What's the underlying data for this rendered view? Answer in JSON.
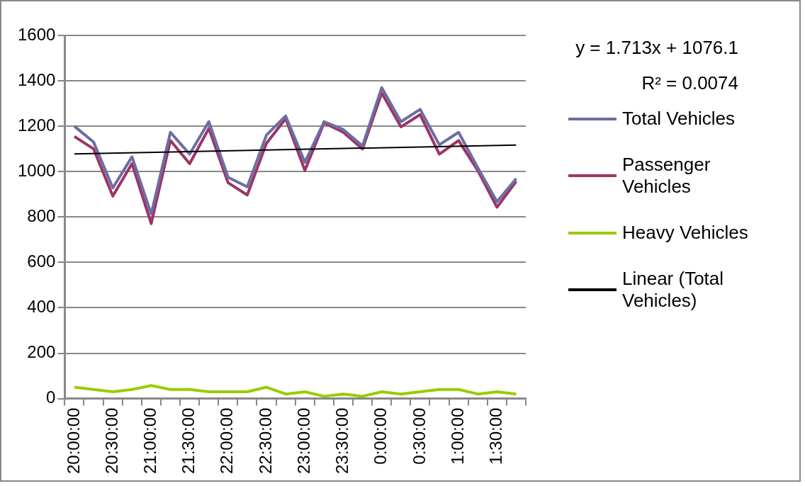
{
  "chart_data": {
    "type": "line",
    "categories": [
      "20:00:00",
      null,
      "20:30:00",
      null,
      "21:00:00",
      null,
      "21:30:00",
      null,
      "22:00:00",
      null,
      "22:30:00",
      null,
      "23:00:00",
      null,
      "23:30:00",
      null,
      "0:00:00",
      null,
      "0:30:00",
      null,
      "1:00:00",
      null,
      "1:30:00",
      null
    ],
    "series": [
      {
        "name": "Total Vehicles",
        "color": "#6b6ea3",
        "values": [
          1200,
          1130,
          928,
          1065,
          813,
          1173,
          1077,
          1220,
          975,
          933,
          1161,
          1245,
          1041,
          1220,
          1185,
          1113,
          1370,
          1220,
          1274,
          1118,
          1173,
          1017,
          867,
          969
        ]
      },
      {
        "name": "Passenger Vehicles",
        "color": "#9c3565",
        "values": [
          1155,
          1100,
          892,
          1035,
          771,
          1137,
          1035,
          1190,
          951,
          897,
          1125,
          1233,
          1005,
          1215,
          1173,
          1100,
          1346,
          1197,
          1251,
          1077,
          1137,
          1005,
          843,
          957
        ]
      },
      {
        "name": "Heavy Vehicles",
        "color": "#99cc00",
        "values": [
          50,
          40,
          30,
          40,
          57,
          40,
          40,
          30,
          30,
          30,
          50,
          20,
          30,
          10,
          20,
          10,
          30,
          20,
          30,
          40,
          40,
          20,
          30,
          20
        ]
      },
      {
        "name": "Linear (Total Vehicles)",
        "color": "#000000",
        "values": [
          1078,
          null,
          null,
          null,
          null,
          null,
          null,
          null,
          null,
          null,
          null,
          null,
          null,
          null,
          null,
          null,
          null,
          null,
          null,
          null,
          null,
          null,
          null,
          1117
        ]
      }
    ],
    "ylim": [
      0,
      1600
    ],
    "yticks": [
      0,
      200,
      400,
      600,
      800,
      1000,
      1200,
      1400,
      1600
    ],
    "grid": "y",
    "legend": "right",
    "marker": "none",
    "annotations": [
      "y = 1.713x + 1076.1",
      "R² = 0.0074"
    ]
  }
}
